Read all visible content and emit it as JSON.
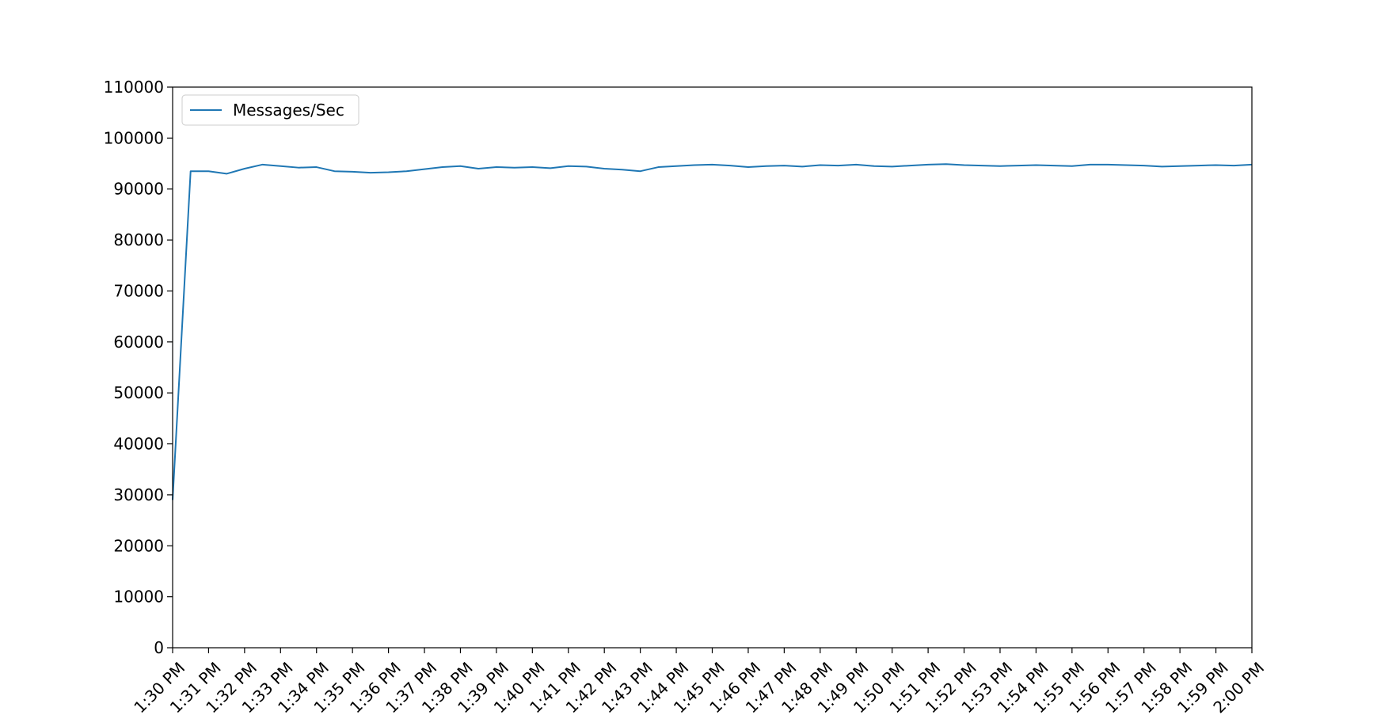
{
  "chart_data": {
    "type": "line",
    "title": "",
    "xlabel": "",
    "ylabel": "",
    "ylim": [
      0,
      110000
    ],
    "yticks": [
      0,
      10000,
      20000,
      30000,
      40000,
      50000,
      60000,
      70000,
      80000,
      90000,
      100000,
      110000
    ],
    "xlim": [
      "1:30 PM",
      "2:00 PM"
    ],
    "xtick_labels": [
      "1:30 PM",
      "1:31 PM",
      "1:32 PM",
      "1:33 PM",
      "1:34 PM",
      "1:35 PM",
      "1:36 PM",
      "1:37 PM",
      "1:38 PM",
      "1:39 PM",
      "1:40 PM",
      "1:41 PM",
      "1:42 PM",
      "1:43 PM",
      "1:44 PM",
      "1:45 PM",
      "1:46 PM",
      "1:47 PM",
      "1:48 PM",
      "1:49 PM",
      "1:50 PM",
      "1:51 PM",
      "1:52 PM",
      "1:53 PM",
      "1:54 PM",
      "1:55 PM",
      "1:56 PM",
      "1:57 PM",
      "1:58 PM",
      "1:59 PM",
      "2:00 PM"
    ],
    "grid": false,
    "legend_position": "top-left",
    "series": [
      {
        "name": "Messages/Sec",
        "color": "#1f77b4",
        "points": [
          [
            "1:30 PM",
            29000
          ],
          [
            "1:30:30 PM",
            93500
          ],
          [
            "1:31 PM",
            93500
          ],
          [
            "1:31:30 PM",
            93000
          ],
          [
            "1:32 PM",
            94000
          ],
          [
            "1:32:30 PM",
            94800
          ],
          [
            "1:33 PM",
            94500
          ],
          [
            "1:33:30 PM",
            94200
          ],
          [
            "1:34 PM",
            94300
          ],
          [
            "1:34:30 PM",
            93500
          ],
          [
            "1:35 PM",
            93400
          ],
          [
            "1:35:30 PM",
            93200
          ],
          [
            "1:36 PM",
            93300
          ],
          [
            "1:36:30 PM",
            93500
          ],
          [
            "1:37 PM",
            93900
          ],
          [
            "1:37:30 PM",
            94300
          ],
          [
            "1:38 PM",
            94500
          ],
          [
            "1:38:30 PM",
            94000
          ],
          [
            "1:39 PM",
            94300
          ],
          [
            "1:39:30 PM",
            94200
          ],
          [
            "1:40 PM",
            94300
          ],
          [
            "1:40:30 PM",
            94100
          ],
          [
            "1:41 PM",
            94500
          ],
          [
            "1:41:30 PM",
            94400
          ],
          [
            "1:42 PM",
            94000
          ],
          [
            "1:42:30 PM",
            93800
          ],
          [
            "1:43 PM",
            93500
          ],
          [
            "1:43:30 PM",
            94300
          ],
          [
            "1:44 PM",
            94500
          ],
          [
            "1:44:30 PM",
            94700
          ],
          [
            "1:45 PM",
            94800
          ],
          [
            "1:45:30 PM",
            94600
          ],
          [
            "1:46 PM",
            94300
          ],
          [
            "1:46:30 PM",
            94500
          ],
          [
            "1:47 PM",
            94600
          ],
          [
            "1:47:30 PM",
            94400
          ],
          [
            "1:48 PM",
            94700
          ],
          [
            "1:48:30 PM",
            94600
          ],
          [
            "1:49 PM",
            94800
          ],
          [
            "1:49:30 PM",
            94500
          ],
          [
            "1:50 PM",
            94400
          ],
          [
            "1:50:30 PM",
            94600
          ],
          [
            "1:51 PM",
            94800
          ],
          [
            "1:51:30 PM",
            94900
          ],
          [
            "1:52 PM",
            94700
          ],
          [
            "1:52:30 PM",
            94600
          ],
          [
            "1:53 PM",
            94500
          ],
          [
            "1:53:30 PM",
            94600
          ],
          [
            "1:54 PM",
            94700
          ],
          [
            "1:54:30 PM",
            94600
          ],
          [
            "1:55 PM",
            94500
          ],
          [
            "1:55:30 PM",
            94800
          ],
          [
            "1:56 PM",
            94800
          ],
          [
            "1:56:30 PM",
            94700
          ],
          [
            "1:57 PM",
            94600
          ],
          [
            "1:57:30 PM",
            94400
          ],
          [
            "1:58 PM",
            94500
          ],
          [
            "1:58:30 PM",
            94600
          ],
          [
            "1:59 PM",
            94700
          ],
          [
            "1:59:30 PM",
            94600
          ],
          [
            "2:00 PM",
            94800
          ]
        ]
      }
    ]
  }
}
